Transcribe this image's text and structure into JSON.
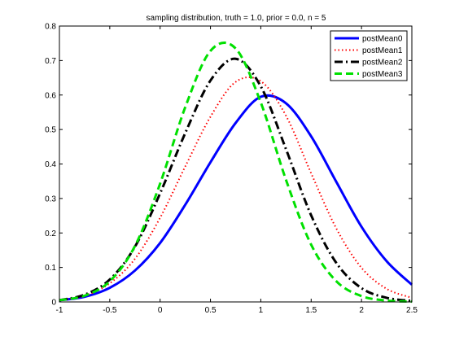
{
  "chart_data": {
    "type": "line",
    "title": "sampling distribution, truth = 1.0, prior = 0.0, n = 5",
    "xlabel": "",
    "ylabel": "",
    "xlim": [
      -1,
      2.5
    ],
    "ylim": [
      0,
      0.8
    ],
    "xticks": [
      "-1",
      "-0.5",
      "0",
      "0.5",
      "1",
      "1.5",
      "2",
      "2.5"
    ],
    "yticks": [
      "0",
      "0.1",
      "0.2",
      "0.3",
      "0.4",
      "0.5",
      "0.6",
      "0.7",
      "0.8"
    ],
    "grid": false,
    "legend_position": "top-right",
    "x": [
      -1.0,
      -0.75,
      -0.5,
      -0.25,
      0.0,
      0.25,
      0.5,
      0.75,
      1.0,
      1.25,
      1.5,
      1.75,
      2.0,
      2.25,
      2.5
    ],
    "series": [
      {
        "name": "postMean0",
        "color": "#0000ff",
        "style": "solid",
        "values": [
          0.005,
          0.015,
          0.041,
          0.091,
          0.171,
          0.282,
          0.405,
          0.519,
          0.595,
          0.576,
          0.48,
          0.348,
          0.218,
          0.118,
          0.05
        ]
      },
      {
        "name": "postMean1",
        "color": "#ff0000",
        "style": "dotted",
        "values": [
          0.005,
          0.018,
          0.054,
          0.125,
          0.244,
          0.393,
          0.537,
          0.638,
          0.64,
          0.54,
          0.373,
          0.213,
          0.099,
          0.038,
          0.012
        ]
      },
      {
        "name": "postMean2",
        "color": "#000000",
        "style": "dashdot",
        "values": [
          0.005,
          0.021,
          0.065,
          0.16,
          0.315,
          0.49,
          0.642,
          0.705,
          0.625,
          0.443,
          0.251,
          0.113,
          0.04,
          0.012,
          0.003
        ]
      },
      {
        "name": "postMean3",
        "color": "#00e000",
        "style": "dashed",
        "values": [
          0.005,
          0.018,
          0.06,
          0.162,
          0.343,
          0.565,
          0.728,
          0.735,
          0.578,
          0.354,
          0.166,
          0.06,
          0.017,
          0.004,
          0.001
        ]
      }
    ]
  }
}
